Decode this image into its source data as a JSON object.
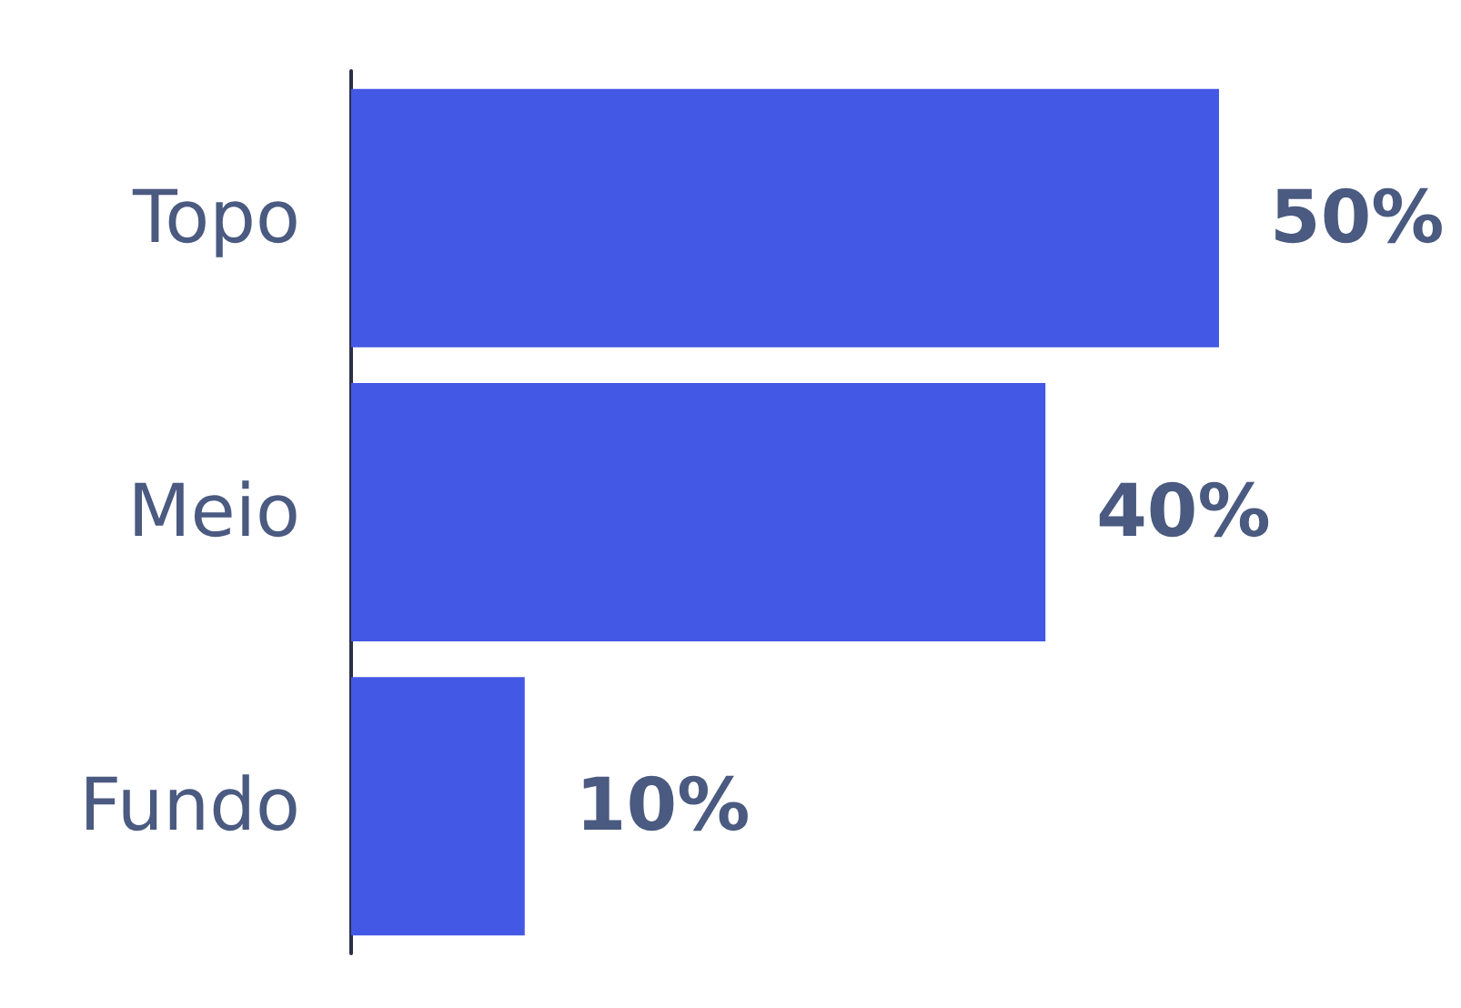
{
  "chart_data": {
    "type": "bar",
    "orientation": "horizontal",
    "categories": [
      "Topo",
      "Meio",
      "Fundo"
    ],
    "values": [
      50,
      40,
      10
    ],
    "color": "#4358e5",
    "value_labels": [
      "50%",
      "40%",
      "10%"
    ]
  }
}
